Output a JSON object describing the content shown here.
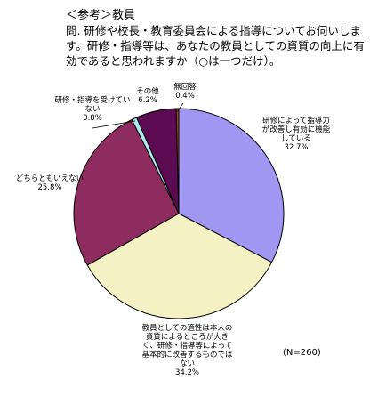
{
  "header": {
    "title": "＜参考＞教員",
    "question_prefix": "問.",
    "question_text": "研修や校長・教育委員会による指導についてお伺いします。研修・指導等は、あなたの教員としての資質の向上に有効であると思われますか（○は一つだけ）。"
  },
  "chart_data": {
    "type": "pie",
    "title": "",
    "n_label": "(N=260)",
    "slices": [
      {
        "label": "研修によって指導力が改善し有効に機能している",
        "value": 32.7,
        "value_label": "32.7%",
        "color": "#9f97f2"
      },
      {
        "label": "教員としての適性は本人の資質によるところが大きく、研修・指導等によって基本的に改善するものではない",
        "value": 34.2,
        "value_label": "34.2%",
        "color": "#f4f1c4"
      },
      {
        "label": "どちらともいえない",
        "value": 25.8,
        "value_label": "25.8%",
        "color": "#8e2c5f"
      },
      {
        "label": "研修・指導を受けていない",
        "value": 0.8,
        "value_label": "0.8%",
        "color": "#b3e8ec"
      },
      {
        "label": "その他",
        "value": 6.2,
        "value_label": "6.2%",
        "color": "#5c0a52"
      },
      {
        "label": "無回答",
        "value": 0.4,
        "value_label": "0.4%",
        "color": "#a63c22"
      }
    ]
  }
}
